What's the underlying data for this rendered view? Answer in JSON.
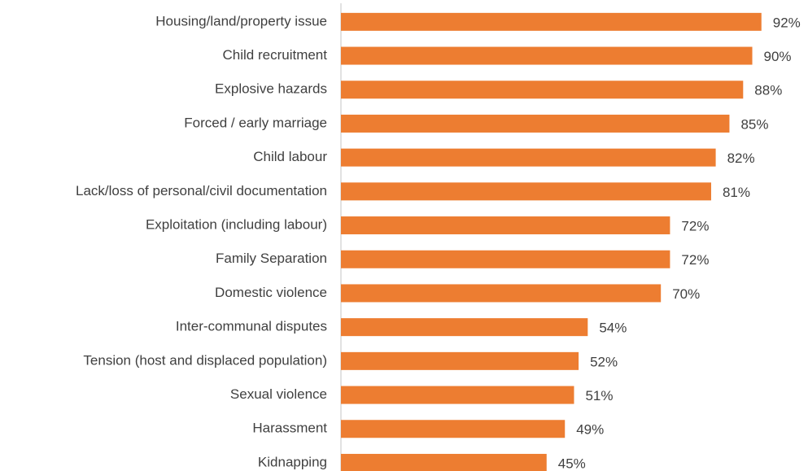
{
  "chart_data": {
    "type": "barh",
    "categories": [
      "Housing/land/property issue",
      "Child recruitment",
      "Explosive hazards",
      "Forced / early marriage",
      "Child labour",
      "Lack/loss of personal/civil documentation",
      "Exploitation (including labour)",
      "Family Separation",
      "Domestic violence",
      "Inter-communal disputes",
      "Tension (host and displaced population)",
      "Sexual violence",
      "Harassment ",
      "Kidnapping"
    ],
    "values": [
      92,
      90,
      88,
      85,
      82,
      81,
      72,
      72,
      70,
      54,
      52,
      51,
      49,
      45
    ],
    "value_labels": [
      "92%",
      "90%",
      "88%",
      "85%",
      "82%",
      "81%",
      "72%",
      "72%",
      "70%",
      "54%",
      "52%",
      "51%",
      "49%",
      "45%"
    ],
    "color": "#ed7d31",
    "xlim": [
      0,
      100
    ]
  }
}
